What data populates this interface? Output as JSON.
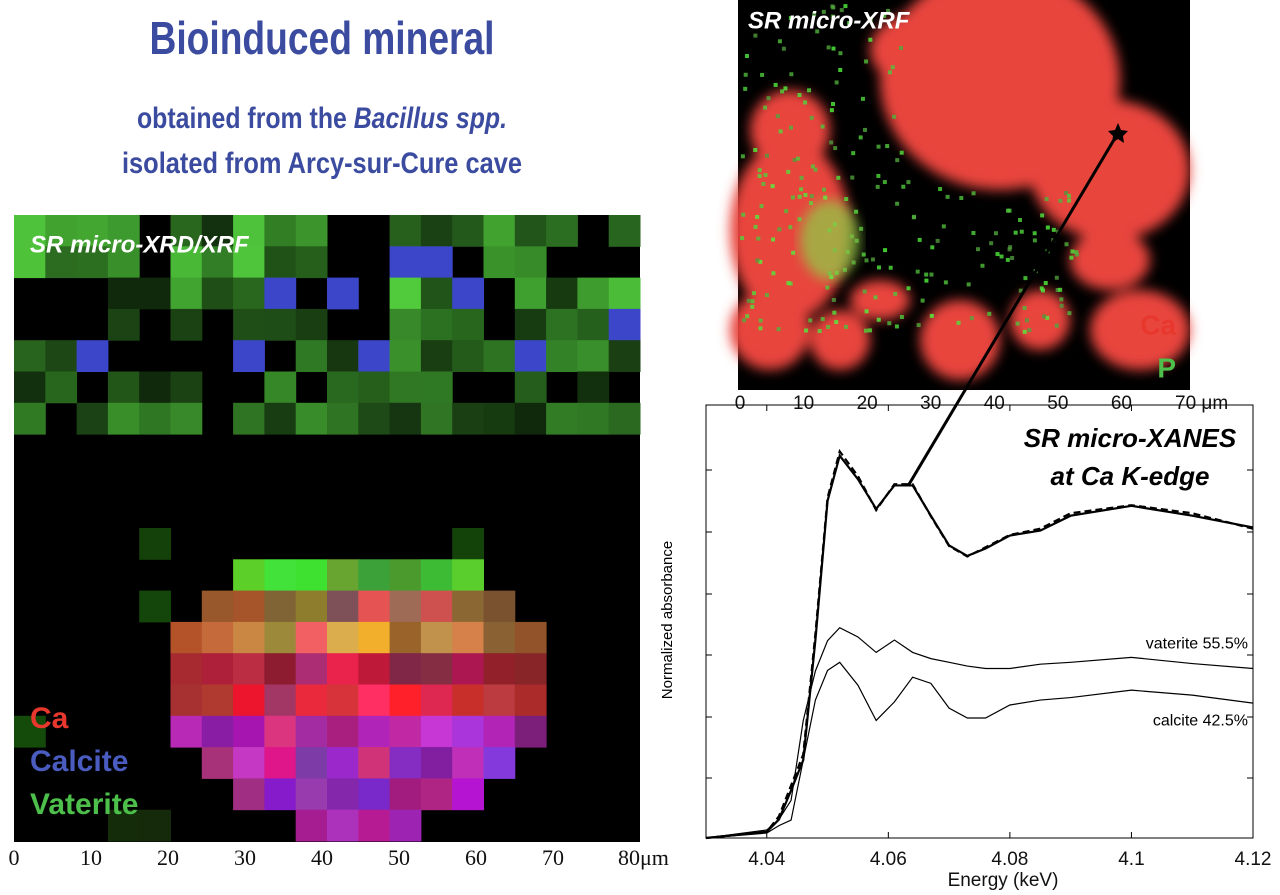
{
  "title": "Bioinduced mineral",
  "subtitle": {
    "line1_start": "obtained from the ",
    "line1_italic": "Bacillus spp.",
    "line2": "isolated from Arcy-sur-Cure cave"
  },
  "xrd_map": {
    "label": "SR micro-XRD/XRF",
    "legend": [
      "Ca",
      "Calcite",
      "Vaterite"
    ],
    "ticks": [
      0,
      10,
      20,
      30,
      40,
      50,
      60,
      70,
      {
        "value": 80,
        "label": "80μm"
      }
    ]
  },
  "xrf_map": {
    "label": "SR micro-XRF",
    "legend": [
      "Ca",
      "P"
    ],
    "ticks": [
      0,
      10,
      20,
      30,
      40,
      50,
      60,
      {
        "value": 70,
        "label": "70 μm"
      }
    ]
  },
  "chart_data": {
    "type": "line",
    "annotation": [
      "SR micro-XANES",
      "at Ca K-edge"
    ],
    "xlabel": "Energy (keV)",
    "ylabel": "Normalized absorbance",
    "xlim": [
      4.03,
      4.12
    ],
    "xticks": [
      4.04,
      4.06,
      4.08,
      4.1,
      4.12
    ],
    "ylim": [
      0,
      7
    ],
    "x": [
      4.03,
      4.04,
      4.042,
      4.044,
      4.046,
      4.048,
      4.05,
      4.052,
      4.055,
      4.058,
      4.061,
      4.064,
      4.067,
      4.07,
      4.073,
      4.076,
      4.08,
      4.085,
      4.09,
      4.1,
      4.11,
      4.12
    ],
    "series": [
      {
        "color": "#000000",
        "style": "solid",
        "values": [
          0,
          0.1,
          0.3,
          0.77,
          1.26,
          3.2,
          5.45,
          6.18,
          5.8,
          5.32,
          5.7,
          5.7,
          5.21,
          4.73,
          4.56,
          4.68,
          4.89,
          4.97,
          5.21,
          5.37,
          5.21,
          5.02
        ]
      },
      {
        "color": "#000000",
        "style": "dashed",
        "values": [
          0,
          0.1,
          0.35,
          0.85,
          1.35,
          3.3,
          5.5,
          6.25,
          5.85,
          5.3,
          5.72,
          5.72,
          5.2,
          4.72,
          4.55,
          4.7,
          4.9,
          5.0,
          5.25,
          5.38,
          5.25,
          5.0
        ]
      },
      {
        "name": "vaterite 55.5%",
        "color": "#000000",
        "style": "thin",
        "values": [
          0,
          0.13,
          0.3,
          0.61,
          1.9,
          2.7,
          3.19,
          3.4,
          3.25,
          3.0,
          3.2,
          3.0,
          2.9,
          2.84,
          2.78,
          2.74,
          2.74,
          2.81,
          2.84,
          2.92,
          2.82,
          2.74
        ]
      },
      {
        "name": "calcite 42.5%",
        "color": "#000000",
        "style": "thin",
        "values": [
          0,
          0.08,
          0.2,
          0.29,
          1.26,
          2.23,
          2.71,
          2.84,
          2.47,
          1.9,
          2.2,
          2.6,
          2.5,
          2.1,
          1.94,
          1.94,
          2.15,
          2.23,
          2.27,
          2.39,
          2.31,
          2.18
        ]
      }
    ]
  }
}
